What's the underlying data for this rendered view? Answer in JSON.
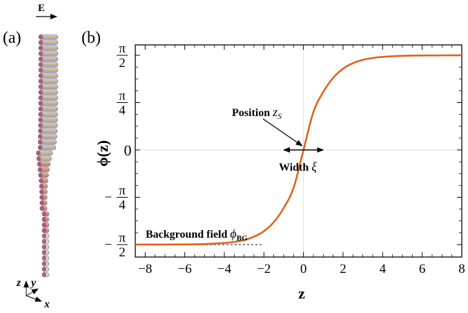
{
  "figure": {
    "panel_a_label": "(a)",
    "panel_b_label": "(b)",
    "field_label": "E",
    "axis_triad": {
      "z": "z",
      "y": "y",
      "x": "x"
    }
  },
  "chart_data": {
    "type": "line",
    "xlabel": "z",
    "ylabel_main": "ϕ(z)",
    "xlim": [
      -8.5,
      8
    ],
    "ylim_description": "[-π/2, π/2]",
    "ylim": [
      -1.5708,
      1.5708
    ],
    "grid": false,
    "x_ticks": [
      "−8",
      "−6",
      "−4",
      "−2",
      "0",
      "2",
      "4",
      "6",
      "8"
    ],
    "x_tick_values": [
      -8,
      -6,
      -4,
      -2,
      0,
      2,
      4,
      6,
      8
    ],
    "y_ticks": [
      {
        "value": -1.5708,
        "label": "−π/2",
        "sign": "−",
        "num": "π",
        "den": "2"
      },
      {
        "value": -0.7854,
        "label": "−π/4",
        "sign": "−",
        "num": "π",
        "den": "4"
      },
      {
        "value": 0,
        "label": "0",
        "sign": "",
        "num": "0",
        "den": ""
      },
      {
        "value": 0.7854,
        "label": "π/4",
        "sign": "",
        "num": "π",
        "den": "4"
      },
      {
        "value": 1.5708,
        "label": "π/2",
        "sign": "",
        "num": "π",
        "den": "2"
      }
    ],
    "series": [
      {
        "color": "#e0611a",
        "x": [
          -8.5,
          -8,
          -7,
          -6,
          -5,
          -4,
          -3.5,
          -3,
          -2.5,
          -2,
          -1.5,
          -1,
          -0.5,
          0,
          0.5,
          1,
          1.5,
          2,
          2.5,
          3,
          3.5,
          4,
          5,
          6,
          7,
          8
        ],
        "y": [
          -1.5704,
          -1.5702,
          -1.5694,
          -1.5672,
          -1.561,
          -1.5446,
          -1.5266,
          -1.4948,
          -1.4402,
          -1.3482,
          -1.1975,
          -0.9628,
          -0.6277,
          0.0,
          0.6277,
          0.9628,
          1.1975,
          1.3482,
          1.4402,
          1.4948,
          1.5266,
          1.5446,
          1.561,
          1.5672,
          1.5694,
          1.5702
        ]
      }
    ],
    "baseline": {
      "y": -1.5708,
      "x_start": -8.5,
      "x_end": -2,
      "color": "#888888",
      "style": "dotted"
    },
    "annotations": {
      "position_label": "Position",
      "position_var": "z",
      "position_sub": "S",
      "width_label": "Width",
      "width_var": "ξ",
      "width_arrow_x": [
        -1,
        1
      ],
      "background_label": "Background field",
      "background_var": "ϕ",
      "background_sub": "BG"
    }
  }
}
